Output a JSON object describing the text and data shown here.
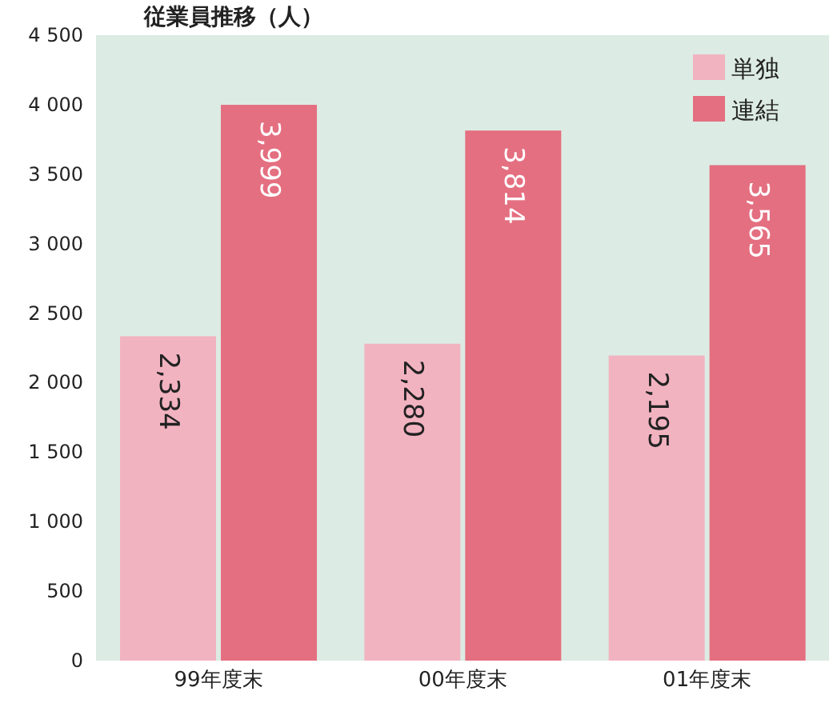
{
  "chart_data": {
    "type": "bar",
    "title": "従業員推移（人）",
    "categories": [
      "99年度末",
      "00年度末",
      "01年度末"
    ],
    "series": [
      {
        "name": "単独",
        "color": "#f2b3c0",
        "values": [
          2334,
          2280,
          2195
        ],
        "value_labels": [
          "2,334",
          "2,280",
          "2,195"
        ]
      },
      {
        "name": "連結",
        "color": "#e46f80",
        "values": [
          3999,
          3814,
          3565
        ],
        "value_labels": [
          "3,999",
          "3,814",
          "3,565"
        ]
      }
    ],
    "ylim": [
      0,
      4500
    ],
    "yticks": [
      0,
      500,
      {
        "value": 1000,
        "label": "1 000"
      },
      {
        "value": 1500,
        "label": "1 500"
      },
      {
        "value": 2000,
        "label": "2 000"
      },
      {
        "value": 2500,
        "label": "2 500"
      },
      {
        "value": 3000,
        "label": "3 000"
      },
      {
        "value": 3500,
        "label": "3 500"
      },
      {
        "value": 4000,
        "label": "4 000"
      },
      {
        "value": 4500,
        "label": "4 500"
      }
    ],
    "grid": false,
    "legend": "top right"
  }
}
